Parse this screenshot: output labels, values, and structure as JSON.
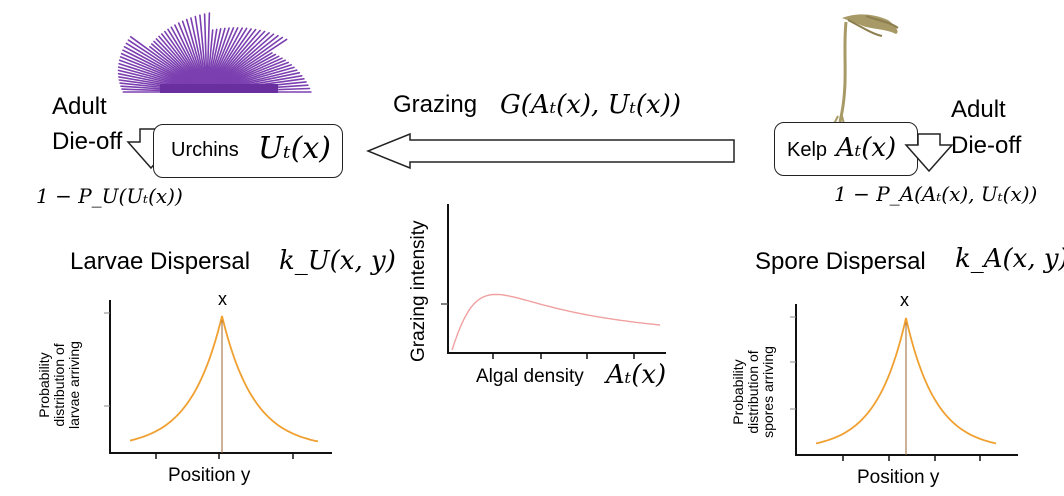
{
  "urchin": {
    "adult_label_1": "Adult",
    "adult_label_2": "Die-off",
    "box_label": "Urchins",
    "box_math": "Uₜ(x)",
    "survival": "1 − P_U(Uₜ(x))"
  },
  "kelp": {
    "adult_label_1": "Adult",
    "adult_label_2": "Die-off",
    "box_label": "Kelp",
    "box_math": "Aₜ(x)",
    "survival": "1 − P_A(Aₜ(x), Uₜ(x))"
  },
  "grazing": {
    "label": "Grazing",
    "math": "G(Aₜ(x), Uₜ(x))",
    "chart_ylabel": "Grazing intensity",
    "chart_xlabel": "Algal density",
    "chart_xmath": "Aₜ(x)"
  },
  "larvae": {
    "title": "Larvae Dispersal",
    "math": "k_U(x, y)",
    "peak_label": "x",
    "ylabel_lines": [
      "Probability",
      "distribution of",
      "larvae arriving"
    ],
    "xlabel": "Position y"
  },
  "spore": {
    "title": "Spore Dispersal",
    "math": "k_A(x, y)",
    "peak_label": "x",
    "ylabel_lines": [
      "Probability",
      "distribution of",
      "spores arriving"
    ],
    "xlabel": "Position y"
  },
  "colors": {
    "urchin": "#7b3fb0",
    "kelp": "#a89a66",
    "kernel": "#f0a030",
    "grazing_curve": "#f0a0a0"
  }
}
